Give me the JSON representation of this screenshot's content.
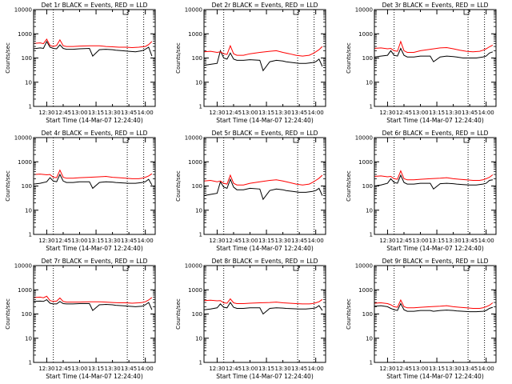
{
  "figure": {
    "xlabel": "Start Time (14-Mar-07 12:24:40)",
    "ylabel": "Counts/sec",
    "x_tick_labels": [
      "12:30",
      "12:45",
      "13:00",
      "13:15",
      "13:30",
      "13:45",
      "14:00"
    ],
    "y_tick_labels": [
      "1",
      "10",
      "100",
      "1000",
      "10000"
    ],
    "marker_label": "L"
  },
  "colors": {
    "events": "#000000",
    "lld": "#ff0000",
    "axes": "#000000"
  },
  "chart_data": [
    {
      "type": "line",
      "title": "Det 1r BLACK = Events, RED = LLD",
      "x_unit": "minutes_after_12:30",
      "xlim": [
        -4,
        33
      ],
      "yscale": "log",
      "ylim": [
        1,
        10000
      ],
      "vlines": [
        2,
        24.5,
        29.5
      ],
      "marker_x": 24,
      "series": [
        {
          "name": "Events",
          "x": [
            -4,
            -2,
            -1,
            0,
            1,
            2,
            3,
            4,
            5,
            6,
            8,
            10,
            13,
            14,
            16,
            18,
            20,
            21,
            23,
            25,
            27,
            29,
            30,
            31,
            32
          ],
          "y": [
            240,
            260,
            250,
            480,
            280,
            250,
            240,
            350,
            250,
            230,
            230,
            240,
            250,
            120,
            220,
            230,
            220,
            210,
            200,
            190,
            180,
            200,
            230,
            280,
            120
          ]
        },
        {
          "name": "LLD",
          "x": [
            -4,
            -2,
            -1,
            0,
            1,
            2,
            3,
            4,
            5,
            6,
            8,
            10,
            13,
            16,
            18,
            20,
            22,
            24,
            26,
            28,
            29,
            30,
            31,
            32
          ],
          "y": [
            400,
            420,
            390,
            600,
            330,
            300,
            330,
            560,
            320,
            300,
            300,
            310,
            320,
            320,
            300,
            290,
            280,
            280,
            270,
            280,
            290,
            300,
            360,
            480
          ]
        }
      ]
    },
    {
      "type": "line",
      "title": "Det 2r BLACK = Events, RED = LLD",
      "x_unit": "minutes_after_12:30",
      "xlim": [
        -4,
        33
      ],
      "yscale": "log",
      "ylim": [
        1,
        10000
      ],
      "vlines": [
        2,
        24.5,
        29.5
      ],
      "marker_x": 24,
      "series": [
        {
          "name": "Events",
          "x": [
            -4,
            -2,
            0,
            1,
            2,
            3,
            4,
            5,
            6,
            8,
            10,
            13,
            14,
            16,
            18,
            20,
            21,
            23,
            25,
            27,
            29,
            30,
            31,
            32
          ],
          "y": [
            50,
            55,
            60,
            200,
            100,
            90,
            160,
            90,
            80,
            80,
            85,
            80,
            30,
            70,
            80,
            75,
            70,
            65,
            60,
            60,
            65,
            70,
            90,
            45
          ]
        },
        {
          "name": "LLD",
          "x": [
            -4,
            -2,
            0,
            1,
            2,
            3,
            4,
            5,
            6,
            8,
            10,
            13,
            16,
            18,
            20,
            22,
            24,
            26,
            28,
            29,
            30,
            31,
            32
          ],
          "y": [
            180,
            190,
            170,
            180,
            150,
            140,
            320,
            150,
            130,
            130,
            150,
            170,
            190,
            200,
            170,
            150,
            130,
            120,
            130,
            150,
            180,
            220,
            300
          ]
        }
      ]
    },
    {
      "type": "line",
      "title": "Det 3r BLACK = Events, RED = LLD",
      "x_unit": "minutes_after_12:30",
      "xlim": [
        -4,
        33
      ],
      "yscale": "log",
      "ylim": [
        1,
        10000
      ],
      "vlines": [
        2,
        24.5,
        29.5
      ],
      "marker_x": 24,
      "series": [
        {
          "name": "Events",
          "x": [
            -4,
            -2,
            0,
            1,
            2,
            3,
            4,
            5,
            6,
            8,
            10,
            13,
            14,
            16,
            18,
            20,
            21,
            23,
            25,
            27,
            29,
            30,
            31,
            32
          ],
          "y": [
            110,
            120,
            130,
            200,
            130,
            120,
            250,
            130,
            110,
            110,
            120,
            120,
            70,
            110,
            120,
            115,
            110,
            100,
            100,
            100,
            110,
            120,
            160,
            180
          ]
        },
        {
          "name": "LLD",
          "x": [
            -4,
            -2,
            0,
            1,
            2,
            3,
            4,
            5,
            6,
            8,
            10,
            13,
            16,
            18,
            20,
            22,
            24,
            26,
            28,
            29,
            30,
            31,
            32
          ],
          "y": [
            250,
            260,
            240,
            250,
            200,
            190,
            480,
            200,
            170,
            170,
            200,
            230,
            260,
            270,
            240,
            210,
            190,
            180,
            190,
            210,
            240,
            290,
            340
          ]
        }
      ]
    },
    {
      "type": "line",
      "title": "Det 4r BLACK = Events, RED = LLD",
      "x_unit": "minutes_after_12:30",
      "xlim": [
        -4,
        33
      ],
      "yscale": "log",
      "ylim": [
        1,
        10000
      ],
      "vlines": [
        2,
        24.5,
        29.5
      ],
      "marker_x": 24,
      "series": [
        {
          "name": "Events",
          "x": [
            -4,
            -2,
            0,
            1,
            2,
            3,
            4,
            5,
            6,
            8,
            10,
            13,
            14,
            16,
            18,
            20,
            21,
            23,
            25,
            27,
            29,
            30,
            31,
            32
          ],
          "y": [
            120,
            130,
            150,
            220,
            160,
            150,
            300,
            160,
            140,
            140,
            150,
            150,
            80,
            140,
            150,
            145,
            140,
            135,
            130,
            130,
            140,
            150,
            190,
            110
          ]
        },
        {
          "name": "LLD",
          "x": [
            -4,
            -2,
            0,
            1,
            2,
            3,
            4,
            5,
            6,
            8,
            10,
            13,
            16,
            18,
            20,
            22,
            24,
            26,
            28,
            29,
            30,
            31,
            32
          ],
          "y": [
            300,
            310,
            290,
            300,
            230,
            220,
            450,
            230,
            210,
            210,
            220,
            230,
            240,
            250,
            230,
            220,
            210,
            200,
            200,
            210,
            230,
            260,
            320
          ]
        }
      ]
    },
    {
      "type": "line",
      "title": "Det 5r BLACK = Events, RED = LLD",
      "x_unit": "minutes_after_12:30",
      "xlim": [
        -4,
        33
      ],
      "yscale": "log",
      "ylim": [
        1,
        10000
      ],
      "vlines": [
        2,
        24.5,
        29.5
      ],
      "marker_x": 24,
      "series": [
        {
          "name": "Events",
          "x": [
            -4,
            -2,
            0,
            1,
            2,
            3,
            4,
            5,
            6,
            8,
            10,
            13,
            14,
            16,
            18,
            20,
            21,
            23,
            25,
            27,
            29,
            30,
            31,
            32
          ],
          "y": [
            40,
            45,
            50,
            150,
            90,
            80,
            190,
            90,
            70,
            70,
            80,
            75,
            28,
            65,
            75,
            70,
            65,
            60,
            55,
            55,
            60,
            65,
            80,
            40
          ]
        },
        {
          "name": "LLD",
          "x": [
            -4,
            -2,
            0,
            1,
            2,
            3,
            4,
            5,
            6,
            8,
            10,
            13,
            16,
            18,
            20,
            22,
            24,
            26,
            28,
            29,
            30,
            31,
            32
          ],
          "y": [
            160,
            170,
            150,
            160,
            130,
            120,
            280,
            130,
            110,
            110,
            130,
            150,
            170,
            180,
            160,
            140,
            120,
            110,
            120,
            140,
            170,
            210,
            280
          ]
        }
      ]
    },
    {
      "type": "line",
      "title": "Det 6r BLACK = Events, RED = LLD",
      "x_unit": "minutes_after_12:30",
      "xlim": [
        -4,
        33
      ],
      "yscale": "log",
      "ylim": [
        1,
        10000
      ],
      "vlines": [
        2,
        24.5,
        29.5
      ],
      "marker_x": 24,
      "series": [
        {
          "name": "Events",
          "x": [
            -4,
            -2,
            0,
            1,
            2,
            3,
            4,
            5,
            6,
            8,
            10,
            13,
            14,
            16,
            18,
            20,
            21,
            23,
            25,
            27,
            29,
            30,
            31,
            32
          ],
          "y": [
            100,
            110,
            130,
            200,
            140,
            130,
            280,
            140,
            120,
            120,
            130,
            130,
            75,
            125,
            130,
            125,
            120,
            115,
            110,
            110,
            120,
            130,
            170,
            180
          ]
        },
        {
          "name": "LLD",
          "x": [
            -4,
            -2,
            0,
            1,
            2,
            3,
            4,
            5,
            6,
            8,
            10,
            13,
            16,
            18,
            20,
            22,
            24,
            26,
            28,
            29,
            30,
            31,
            32
          ],
          "y": [
            250,
            260,
            240,
            250,
            200,
            190,
            420,
            200,
            180,
            180,
            190,
            200,
            210,
            220,
            200,
            190,
            180,
            170,
            170,
            180,
            200,
            230,
            290
          ]
        }
      ]
    },
    {
      "type": "line",
      "title": "Det 7r BLACK = Events, RED = LLD",
      "x_unit": "minutes_after_12:30",
      "xlim": [
        -4,
        33
      ],
      "yscale": "log",
      "ylim": [
        1,
        10000
      ],
      "vlines": [
        2,
        24.5,
        29.5
      ],
      "marker_x": 24,
      "series": [
        {
          "name": "Events",
          "x": [
            -4,
            -2,
            -1,
            0,
            1,
            2,
            3,
            4,
            5,
            6,
            8,
            10,
            13,
            14,
            16,
            18,
            20,
            21,
            23,
            25,
            27,
            29,
            30,
            31,
            32
          ],
          "y": [
            330,
            340,
            330,
            390,
            280,
            260,
            260,
            330,
            270,
            260,
            260,
            270,
            270,
            140,
            240,
            250,
            240,
            230,
            220,
            210,
            200,
            210,
            240,
            300,
            150
          ]
        },
        {
          "name": "LLD",
          "x": [
            -4,
            -2,
            -1,
            0,
            1,
            2,
            3,
            4,
            5,
            6,
            8,
            10,
            13,
            16,
            18,
            20,
            22,
            24,
            26,
            28,
            29,
            30,
            31,
            32
          ],
          "y": [
            480,
            500,
            470,
            540,
            360,
            330,
            340,
            460,
            330,
            310,
            310,
            310,
            320,
            320,
            310,
            300,
            290,
            290,
            280,
            290,
            300,
            320,
            380,
            480
          ]
        }
      ]
    },
    {
      "type": "line",
      "title": "Det 8r BLACK = Events, RED = LLD",
      "x_unit": "minutes_after_12:30",
      "xlim": [
        -4,
        33
      ],
      "yscale": "log",
      "ylim": [
        1,
        10000
      ],
      "vlines": [
        2,
        24.5,
        29.5
      ],
      "marker_x": 24,
      "series": [
        {
          "name": "Events",
          "x": [
            -4,
            -2,
            0,
            1,
            2,
            3,
            4,
            5,
            6,
            8,
            10,
            13,
            14,
            16,
            18,
            20,
            21,
            23,
            25,
            27,
            29,
            30,
            31,
            32
          ],
          "y": [
            150,
            160,
            180,
            260,
            190,
            180,
            300,
            190,
            170,
            170,
            180,
            180,
            100,
            170,
            180,
            175,
            170,
            165,
            160,
            160,
            170,
            180,
            220,
            140
          ]
        },
        {
          "name": "LLD",
          "x": [
            -4,
            -2,
            0,
            1,
            2,
            3,
            4,
            5,
            6,
            8,
            10,
            13,
            16,
            18,
            20,
            22,
            24,
            26,
            28,
            29,
            30,
            31,
            32
          ],
          "y": [
            360,
            370,
            350,
            360,
            290,
            280,
            420,
            290,
            270,
            270,
            280,
            290,
            300,
            310,
            290,
            280,
            270,
            260,
            260,
            270,
            290,
            320,
            400
          ]
        }
      ]
    },
    {
      "type": "line",
      "title": "Det 9r BLACK = Events, RED = LLD",
      "x_unit": "minutes_after_12:30",
      "xlim": [
        -4,
        33
      ],
      "yscale": "log",
      "ylim": [
        1,
        10000
      ],
      "vlines": [
        2,
        24.5,
        29.5
      ],
      "marker_x": 24,
      "series": [
        {
          "name": "Events",
          "x": [
            -4,
            -2,
            0,
            1,
            2,
            3,
            4,
            5,
            6,
            8,
            10,
            13,
            14,
            16,
            18,
            20,
            21,
            23,
            25,
            27,
            29,
            30,
            31,
            32
          ],
          "y": [
            210,
            220,
            200,
            170,
            150,
            140,
            270,
            150,
            130,
            130,
            140,
            140,
            130,
            140,
            145,
            140,
            135,
            130,
            125,
            125,
            130,
            140,
            170,
            190
          ]
        },
        {
          "name": "LLD",
          "x": [
            -4,
            -2,
            0,
            1,
            2,
            3,
            4,
            5,
            6,
            8,
            10,
            13,
            16,
            18,
            20,
            22,
            24,
            26,
            28,
            29,
            30,
            31,
            32
          ],
          "y": [
            280,
            290,
            270,
            240,
            200,
            190,
            380,
            200,
            180,
            180,
            190,
            200,
            210,
            220,
            200,
            190,
            180,
            170,
            170,
            180,
            200,
            230,
            290
          ]
        }
      ]
    }
  ]
}
